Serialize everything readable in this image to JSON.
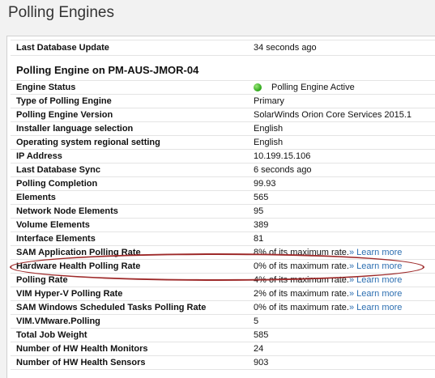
{
  "page": {
    "title": "Polling Engines"
  },
  "summary": {
    "label": "Last Database Update",
    "value": "34 seconds ago"
  },
  "section": {
    "heading": "Polling Engine on PM-AUS-JMOR-04"
  },
  "engine_status": {
    "label": "Engine Status",
    "value": "Polling Engine Active",
    "color": "#2aa516"
  },
  "rows": [
    {
      "label": "Type of Polling Engine",
      "value": "Primary"
    },
    {
      "label": "Polling Engine Version",
      "value": "SolarWinds Orion Core Services 2015.1"
    },
    {
      "label": "Installer language selection",
      "value": "English"
    },
    {
      "label": "Operating system regional setting",
      "value": "English"
    },
    {
      "label": "IP Address",
      "value": "10.199.15.106"
    },
    {
      "label": "Last Database Sync",
      "value": "6 seconds ago"
    },
    {
      "label": "Polling Completion",
      "value": "99.93"
    },
    {
      "label": "Elements",
      "value": "565"
    },
    {
      "label": "Network Node Elements",
      "value": "95"
    },
    {
      "label": "Volume Elements",
      "value": "389"
    },
    {
      "label": "Interface Elements",
      "value": "81"
    },
    {
      "label": "SAM Application Polling Rate",
      "value": "8% of its maximum rate.",
      "link": "» Learn more"
    },
    {
      "label": "Hardware Health Polling Rate",
      "value": "0% of its maximum rate.",
      "link": "» Learn more"
    },
    {
      "label": "Polling Rate",
      "value": "4% of its maximum rate.",
      "link": "» Learn more"
    },
    {
      "label": "VIM Hyper-V Polling Rate",
      "value": "2% of its maximum rate.",
      "link": "» Learn more"
    },
    {
      "label": "SAM Windows Scheduled Tasks Polling Rate",
      "value": "0% of its maximum rate.",
      "link": "» Learn more"
    },
    {
      "label": "VIM.VMware.Polling",
      "value": "5"
    },
    {
      "label": "Total Job Weight",
      "value": "585"
    },
    {
      "label": "Number of HW Health Monitors",
      "value": "24"
    },
    {
      "label": "Number of HW Health Sensors",
      "value": "903"
    }
  ],
  "colors": {
    "link": "#2d6fb1",
    "highlight": "#9e2a2a"
  }
}
